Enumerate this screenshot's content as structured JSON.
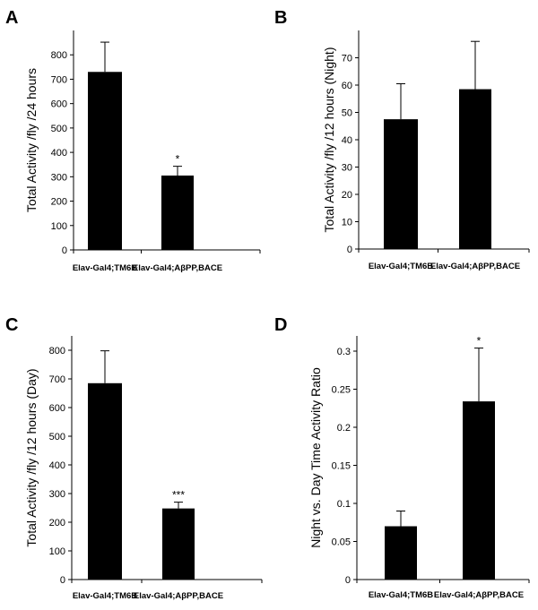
{
  "chart_data": [
    {
      "type": "bar",
      "panel": "A",
      "categories": [
        "Elav-Gal4;TM6B",
        "Elav-Gal4;AβPP,BACE"
      ],
      "values": [
        730,
        305
      ],
      "errors": [
        122,
        38
      ],
      "significance": [
        "",
        "*"
      ],
      "ylabel": "Total Activity /fly /24 hours",
      "ylim": [
        0,
        900
      ],
      "yticks": [
        0,
        100,
        200,
        300,
        400,
        500,
        600,
        700,
        800
      ],
      "bar_color": "#000000"
    },
    {
      "type": "bar",
      "panel": "B",
      "categories": [
        "Elav-Gal4;TM6B",
        "Elav-Gal4;AβPP,BACE"
      ],
      "values": [
        47.5,
        58.5
      ],
      "errors": [
        13,
        17.5
      ],
      "significance": [
        "",
        ""
      ],
      "ylabel": "Total Activity /fly /12 hours (Night)",
      "ylim": [
        0,
        80
      ],
      "yticks": [
        0,
        10,
        20,
        30,
        40,
        50,
        60,
        70
      ],
      "bar_color": "#000000"
    },
    {
      "type": "bar",
      "panel": "C",
      "categories": [
        "Elav-Gal4;TM6B",
        "Elav-Gal4;AβPP,BACE"
      ],
      "values": [
        685,
        248
      ],
      "errors": [
        113,
        22
      ],
      "significance": [
        "",
        "***"
      ],
      "ylabel": "Total Activity /fly /12 hours (Day)",
      "ylim": [
        0,
        850
      ],
      "yticks": [
        0,
        100,
        200,
        300,
        400,
        500,
        600,
        700,
        800
      ],
      "bar_color": "#000000"
    },
    {
      "type": "bar",
      "panel": "D",
      "categories": [
        "Elav-Gal4;TM6B",
        "Elav-Gal4;AβPP,BACE"
      ],
      "values": [
        0.07,
        0.234
      ],
      "errors": [
        0.02,
        0.07
      ],
      "significance": [
        "",
        "*"
      ],
      "ylabel": "Night vs. Day Time Activity Ratio",
      "ylim": [
        0,
        0.32
      ],
      "yticks": [
        0,
        0.05,
        0.1,
        0.15,
        0.2,
        0.25,
        0.3
      ],
      "bar_color": "#000000"
    }
  ]
}
